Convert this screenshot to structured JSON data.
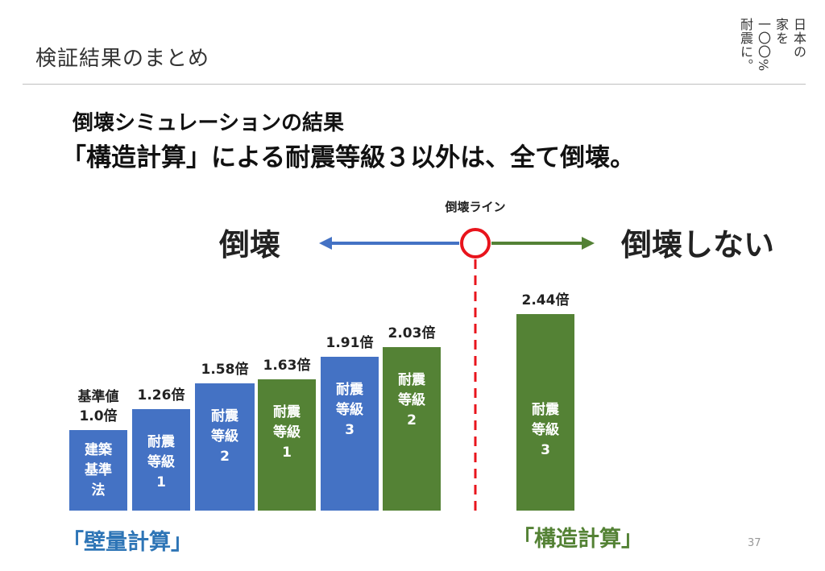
{
  "header": {
    "title": "検証結果のまとめ",
    "logo_columns": [
      "日本の",
      "家を",
      "一〇〇%",
      "耐震に。"
    ]
  },
  "headline": "倒壊シミュレーションの結果",
  "subheadline": "「構造計算」による耐震等級３以外は、全て倒壊。",
  "page_number": "37",
  "colors": {
    "blue": "#4472c4",
    "green": "#548235",
    "red": "#e8141c",
    "arrow_blue": "#4472c4",
    "arrow_green": "#538135",
    "group_label_blue": "#2e75b6",
    "group_label_green": "#548235"
  },
  "chart_data": {
    "type": "bar",
    "unit": "倍",
    "threshold_label": "倒壊ライン",
    "left_direction_label": "倒壊",
    "right_direction_label": "倒壊しない",
    "groups": [
      "「壁量計算」",
      "「構造計算」"
    ],
    "bars": [
      {
        "value": 1.0,
        "value_label": "基準値 1.0倍",
        "value_label_lines": [
          "基準値",
          "1.0倍"
        ],
        "inner_label": [
          "建築",
          "基準",
          "法"
        ],
        "color": "blue"
      },
      {
        "value": 1.26,
        "value_label": "1.26倍",
        "value_label_lines": [
          "1.26倍"
        ],
        "inner_label": [
          "耐震",
          "等級",
          "1"
        ],
        "color": "blue"
      },
      {
        "value": 1.58,
        "value_label": "1.58倍",
        "value_label_lines": [
          "1.58倍"
        ],
        "inner_label": [
          "耐震",
          "等級",
          "2"
        ],
        "color": "blue"
      },
      {
        "value": 1.63,
        "value_label": "1.63倍",
        "value_label_lines": [
          "1.63倍"
        ],
        "inner_label": [
          "耐震",
          "等級",
          "1"
        ],
        "color": "green"
      },
      {
        "value": 1.91,
        "value_label": "1.91倍",
        "value_label_lines": [
          "1.91倍"
        ],
        "inner_label": [
          "耐震",
          "等級",
          "3"
        ],
        "color": "blue"
      },
      {
        "value": 2.03,
        "value_label": "2.03倍",
        "value_label_lines": [
          "2.03倍"
        ],
        "inner_label": [
          "耐震",
          "等級",
          "2"
        ],
        "color": "green"
      },
      {
        "value": 2.44,
        "value_label": "2.44倍",
        "value_label_lines": [
          "2.44倍"
        ],
        "inner_label": [
          "耐震",
          "等級",
          "3"
        ],
        "color": "green"
      }
    ]
  }
}
